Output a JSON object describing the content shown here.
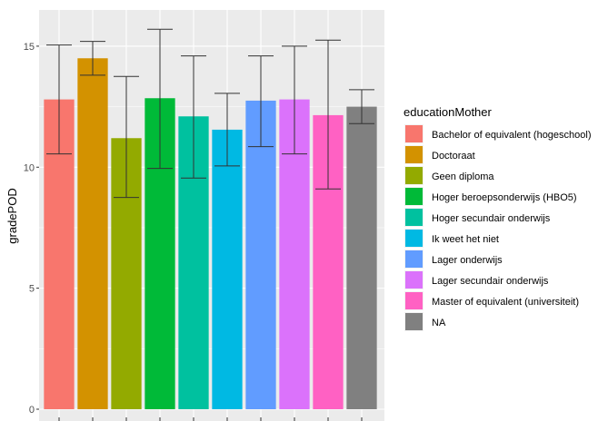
{
  "chart_data": {
    "type": "bar",
    "ylabel": "gradePOD",
    "xlabel": "",
    "ylim": [
      0,
      16.2
    ],
    "yticks": [
      0,
      5,
      10,
      15
    ],
    "grid": true,
    "legend_position": "right",
    "legend_title": "educationMother",
    "categories": [
      "Bachelor of equivalent (hogeschool)",
      "Doctoraat",
      "Geen diploma",
      "Hoger beroepsonderwijs (HBO5)",
      "Hoger secundair onderwijs",
      "Ik weet het niet",
      "Lager onderwijs",
      "Lager secundair onderwijs",
      "Master of equivalent (universiteit)",
      "NA"
    ],
    "values": [
      12.8,
      14.5,
      11.2,
      12.85,
      12.1,
      11.55,
      12.75,
      12.8,
      12.15,
      12.5
    ],
    "error_low": [
      10.55,
      13.8,
      8.75,
      9.95,
      9.55,
      10.05,
      10.85,
      10.55,
      9.1,
      11.8
    ],
    "error_high": [
      15.05,
      15.2,
      13.75,
      15.7,
      14.6,
      13.05,
      14.6,
      15.0,
      15.25,
      13.2
    ],
    "colors": [
      "#F8766D",
      "#D39200",
      "#93AA00",
      "#00BA38",
      "#00C19F",
      "#00B9E3",
      "#619CFF",
      "#DB72FB",
      "#FF61C3",
      "#808080"
    ]
  }
}
